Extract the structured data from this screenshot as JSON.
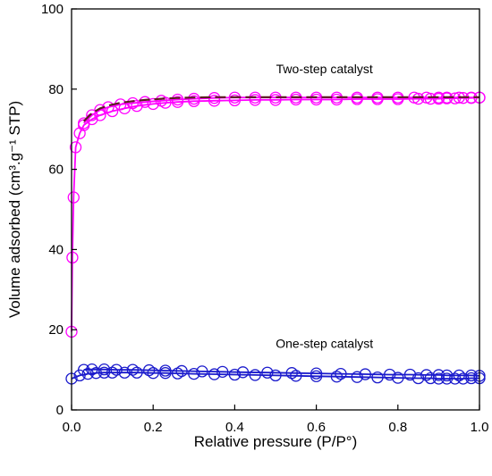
{
  "chart_data": {
    "type": "line",
    "xlabel": "Relative pressure (P/P°)",
    "ylabel": "Volume adsorbed (cm³.g⁻¹ STP)",
    "xlim": [
      0.0,
      1.0
    ],
    "ylim": [
      0,
      100
    ],
    "xticks": [
      "0.0",
      "0.2",
      "0.4",
      "0.6",
      "0.8",
      "1.0"
    ],
    "yticks": [
      "0",
      "20",
      "40",
      "60",
      "80",
      "100"
    ],
    "grid": false,
    "legend": "none",
    "annotations": [
      {
        "text": "Two-step catalyst",
        "x": 0.62,
        "y": 84
      },
      {
        "text": "One-step catalyst",
        "x": 0.62,
        "y": 15.5
      }
    ],
    "series": [
      {
        "color": "#ff00ff",
        "marker": "open-circle",
        "line": "solid",
        "x": [
          0.0,
          0.002,
          0.005,
          0.01,
          0.02,
          0.03,
          0.05,
          0.07,
          0.1,
          0.13,
          0.16,
          0.2,
          0.23,
          0.26,
          0.3,
          0.35,
          0.4,
          0.45,
          0.5,
          0.55,
          0.6,
          0.65,
          0.7,
          0.75,
          0.8,
          0.85,
          0.88,
          0.9,
          0.92,
          0.94,
          0.96,
          0.98,
          1.0
        ],
        "y": [
          19.5,
          38,
          53,
          65.5,
          69,
          71,
          72.5,
          73.5,
          74.5,
          75.2,
          75.8,
          76.3,
          76.6,
          76.8,
          77,
          77.1,
          77.2,
          77.3,
          77.3,
          77.4,
          77.4,
          77.4,
          77.5,
          77.5,
          77.5,
          77.6,
          77.6,
          77.6,
          77.7,
          77.7,
          77.8,
          77.8,
          77.9
        ]
      },
      {
        "color": "#ff00ff",
        "marker": "open-circle",
        "line": "solid",
        "x": [
          1.0,
          0.98,
          0.95,
          0.92,
          0.9,
          0.87,
          0.84,
          0.8,
          0.75,
          0.7,
          0.65,
          0.6,
          0.55,
          0.5,
          0.45,
          0.4,
          0.35,
          0.3,
          0.26,
          0.22,
          0.18,
          0.15,
          0.12,
          0.09,
          0.07,
          0.05,
          0.03
        ],
        "y": [
          77.9,
          77.9,
          77.9,
          77.9,
          77.9,
          77.9,
          77.9,
          77.9,
          77.9,
          77.9,
          77.9,
          77.9,
          77.9,
          77.9,
          77.9,
          77.9,
          77.8,
          77.6,
          77.4,
          77.1,
          76.8,
          76.5,
          76.2,
          75.5,
          74.8,
          73.5,
          71.5
        ]
      },
      {
        "color": "#5a1f1f",
        "marker": "none",
        "line": "dashed",
        "x": [
          0.03,
          0.05,
          0.07,
          0.09,
          0.12,
          0.15,
          0.18,
          0.22,
          0.26,
          0.3,
          0.35,
          0.4,
          0.5,
          0.6,
          0.7,
          0.8,
          0.9,
          1.0
        ],
        "y": [
          72,
          74,
          75.2,
          75.9,
          76.6,
          77,
          77.3,
          77.6,
          77.8,
          77.9,
          78,
          78,
          78,
          78,
          78,
          78,
          78,
          78
        ]
      },
      {
        "color": "#1a1acc",
        "marker": "open-circle",
        "line": "solid",
        "x": [
          0.0,
          0.02,
          0.04,
          0.06,
          0.08,
          0.1,
          0.13,
          0.16,
          0.2,
          0.23,
          0.26,
          0.3,
          0.35,
          0.4,
          0.45,
          0.5,
          0.55,
          0.6,
          0.65,
          0.7,
          0.75,
          0.8,
          0.85,
          0.88,
          0.9,
          0.92,
          0.94,
          0.96,
          0.98,
          1.0
        ],
        "y": [
          7.8,
          8.6,
          9.0,
          9.2,
          9.3,
          9.3,
          9.3,
          9.3,
          9.2,
          9.2,
          9.1,
          9.0,
          8.9,
          8.8,
          8.7,
          8.6,
          8.5,
          8.4,
          8.3,
          8.2,
          8.1,
          8.0,
          7.9,
          7.9,
          7.8,
          7.8,
          7.8,
          7.8,
          7.9,
          7.9
        ]
      },
      {
        "color": "#1a1acc",
        "marker": "open-circle",
        "line": "solid",
        "x": [
          1.0,
          0.98,
          0.95,
          0.92,
          0.9,
          0.87,
          0.83,
          0.78,
          0.72,
          0.66,
          0.6,
          0.54,
          0.48,
          0.42,
          0.37,
          0.32,
          0.27,
          0.23,
          0.19,
          0.15,
          0.11,
          0.08,
          0.05,
          0.03
        ],
        "y": [
          8.5,
          8.6,
          8.6,
          8.6,
          8.7,
          8.7,
          8.8,
          8.8,
          8.9,
          9.0,
          9.1,
          9.2,
          9.3,
          9.4,
          9.5,
          9.6,
          9.7,
          9.8,
          9.9,
          10.0,
          10.0,
          10.1,
          10.1,
          10.0
        ]
      }
    ]
  }
}
